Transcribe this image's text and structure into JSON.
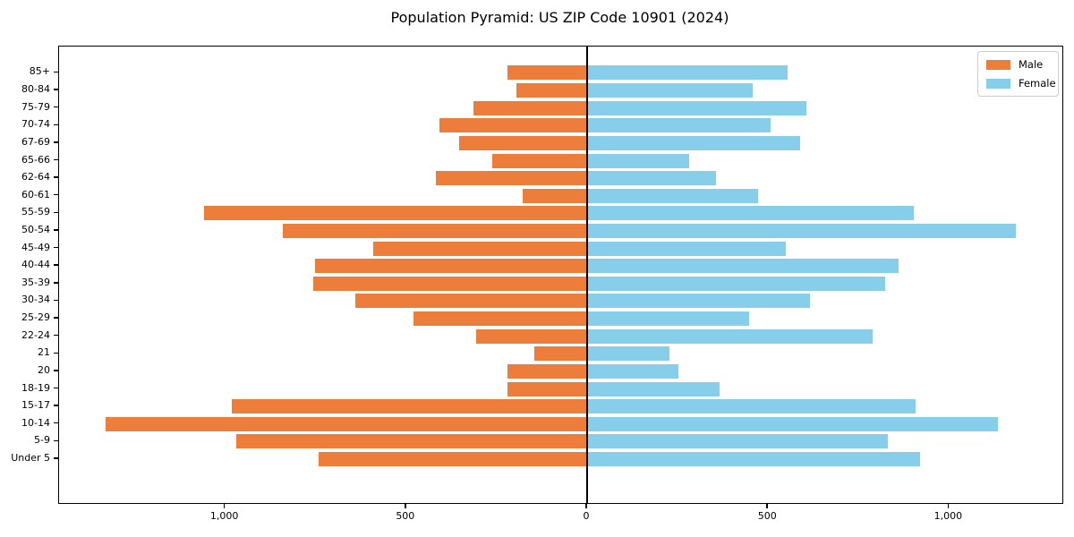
{
  "title": "Population Pyramid: US ZIP Code 10901 (2024)",
  "colors": {
    "male": "#ed7d3b",
    "female": "#87ceeb",
    "axis": "#000000",
    "legend_border": "#cccccc",
    "background": "#ffffff"
  },
  "chart_data": {
    "type": "bar",
    "variant": "population-pyramid",
    "title": "Population Pyramid: US ZIP Code 10901 (2024)",
    "grid": false,
    "categories_top_to_bottom": [
      "85+",
      "80-84",
      "75-79",
      "70-74",
      "67-69",
      "65-66",
      "62-64",
      "60-61",
      "55-59",
      "50-54",
      "45-49",
      "40-44",
      "35-39",
      "30-34",
      "25-29",
      "22-24",
      "21",
      "20",
      "18-19",
      "15-17",
      "10-14",
      "5-9",
      "Under 5"
    ],
    "series": [
      {
        "name": "Male",
        "side": "left",
        "color": "#ed7d3b",
        "values": [
          220,
          195,
          314,
          408,
          354,
          262,
          418,
          177,
          1058,
          840,
          591,
          751,
          756,
          640,
          480,
          307,
          146,
          220,
          221,
          982,
          1331,
          969,
          742
        ]
      },
      {
        "name": "Female",
        "side": "right",
        "color": "#87ceeb",
        "values": [
          554,
          457,
          606,
          507,
          588,
          282,
          356,
          472,
          902,
          1184,
          549,
          860,
          823,
          616,
          448,
          789,
          227,
          252,
          366,
          908,
          1135,
          831,
          919
        ]
      }
    ],
    "x_axis": {
      "tick_values": [
        -1000,
        -500,
        0,
        500,
        1000
      ],
      "tick_labels": [
        "1,000",
        "500",
        "0",
        "500",
        "1,000"
      ],
      "xlim": [
        -1459,
        1313
      ]
    },
    "legend": {
      "position": "upper-right",
      "entries": [
        "Male",
        "Female"
      ]
    }
  }
}
